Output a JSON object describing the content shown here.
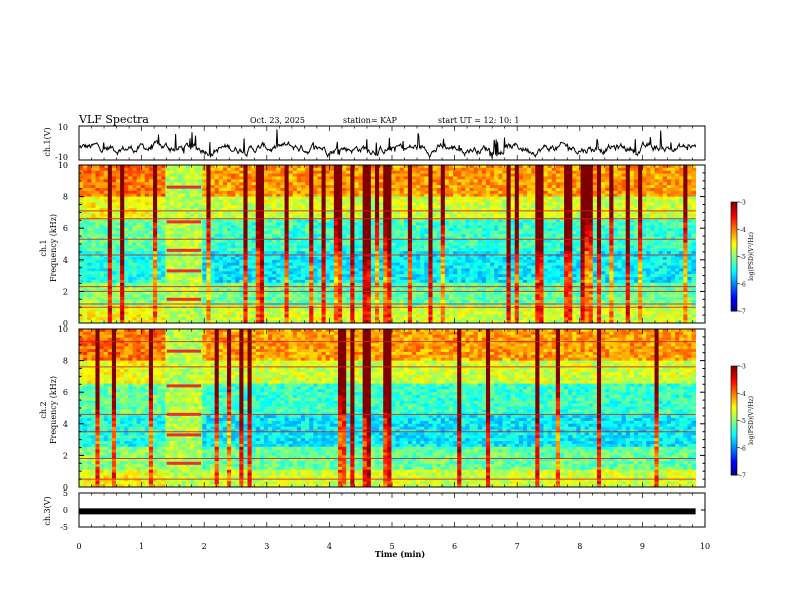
{
  "header": {
    "title": "VLF Spectra",
    "date": "Oct. 23, 2025",
    "station": "station= KAP",
    "start_ut": "start  UT =   12: 10: 1"
  },
  "chart_data": [
    {
      "type": "line",
      "name": "ch1-waveform",
      "ylabel": "ch.1(V)",
      "ylim": [
        -10,
        10
      ],
      "yticks": [
        "10",
        "-10"
      ],
      "x_range_min": [
        0,
        9.85
      ],
      "baseline_v": -3,
      "typical_swing_v": [
        -9,
        8
      ]
    },
    {
      "type": "heatmap",
      "name": "ch1-spectrogram",
      "ylabel": "ch.1\nFrequency  (kHz)",
      "ylim": [
        0,
        10
      ],
      "yticks": [
        "0",
        "2",
        "4",
        "6",
        "8",
        "10"
      ],
      "x_range_min": [
        0,
        9.85
      ],
      "noise_band_min": [
        1.4,
        1.95
      ],
      "line_freqs_khz": [
        1.0,
        1.2,
        2.0,
        2.3,
        4.3,
        5.3,
        6.6,
        7.1
      ],
      "colorbar": {
        "label": "log(PSD)(V²/Hz)",
        "ticks": [
          "-3",
          "-4",
          "-5",
          "-6",
          "-7"
        ],
        "range": [
          -7,
          -3
        ]
      }
    },
    {
      "type": "heatmap",
      "name": "ch2-spectrogram",
      "ylabel": "ch.2\nFrequency  (kHz)",
      "ylim": [
        0,
        10
      ],
      "yticks": [
        "0",
        "2",
        "4",
        "6",
        "8",
        "10"
      ],
      "x_range_min": [
        0,
        9.85
      ],
      "noise_band_min": [
        1.4,
        1.95
      ],
      "line_freqs_khz": [
        0.5,
        1.8,
        3.5,
        4.6,
        7.6,
        9.2
      ],
      "colorbar": {
        "label": "log(PSD)(V²/Hz)",
        "ticks": [
          "-3",
          "-4",
          "-5",
          "-6",
          "-7"
        ],
        "range": [
          -7,
          -3
        ]
      }
    },
    {
      "type": "line",
      "name": "ch3-waveform",
      "ylabel": "ch.3(V)",
      "ylim": [
        -5,
        5
      ],
      "yticks": [
        "5",
        "0",
        "-5"
      ],
      "x_range_min": [
        0,
        9.85
      ],
      "baseline_v": -0.4
    }
  ],
  "xaxis": {
    "label": "Time  (min)",
    "ticks": [
      "0",
      "1",
      "2",
      "3",
      "4",
      "5",
      "6",
      "7",
      "8",
      "9",
      "10"
    ],
    "range": [
      0,
      10
    ]
  }
}
